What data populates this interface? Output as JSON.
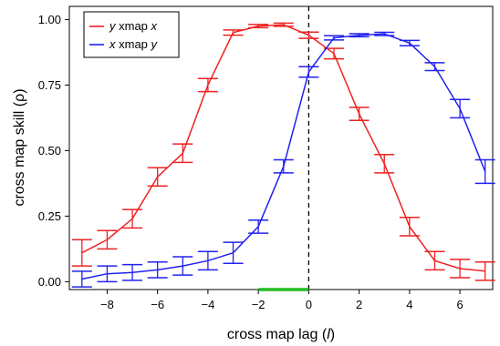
{
  "chart_data": {
    "type": "line",
    "xlabel": "cross map lag (l)",
    "xlabel_parts": {
      "prefix": "cross map lag (",
      "var": "l",
      "suffix": ")"
    },
    "ylabel": "cross map skill (ρ)",
    "xlim": [
      -9.5,
      7.3
    ],
    "ylim": [
      -0.03,
      1.05
    ],
    "xticks": [
      -8,
      -6,
      -4,
      -2,
      0,
      2,
      4,
      6
    ],
    "xtick_labels": [
      "−8",
      "−6",
      "−4",
      "−2",
      "0",
      "2",
      "4",
      "6"
    ],
    "yticks": [
      0.0,
      0.25,
      0.5,
      0.75,
      1.0
    ],
    "ytick_labels": [
      "0.00",
      "0.25",
      "0.50",
      "0.75",
      "1.00"
    ],
    "grid": false,
    "legend_position": "top-left",
    "vline": {
      "x": 0,
      "style": "dashed",
      "color": "#000000"
    },
    "highlight_segment": {
      "x": [
        -2,
        0
      ],
      "color": "#22bb22"
    },
    "x": [
      -9,
      -8,
      -7,
      -6,
      -5,
      -4,
      -3,
      -2,
      -1,
      0,
      1,
      2,
      3,
      4,
      5,
      6,
      7
    ],
    "series": [
      {
        "name": "y xmap x",
        "legend": {
          "a": "y",
          "mid": " xmap ",
          "b": "x"
        },
        "color": "#ee2222",
        "values": [
          0.11,
          0.16,
          0.24,
          0.4,
          0.49,
          0.75,
          0.95,
          0.975,
          0.98,
          0.94,
          0.87,
          0.64,
          0.45,
          0.21,
          0.08,
          0.05,
          0.04
        ],
        "err": [
          0.05,
          0.035,
          0.035,
          0.035,
          0.035,
          0.025,
          0.01,
          0.006,
          0.006,
          0.012,
          0.02,
          0.025,
          0.035,
          0.035,
          0.035,
          0.035,
          0.035
        ]
      },
      {
        "name": "x xmap y",
        "legend": {
          "a": "x",
          "mid": " xmap ",
          "b": "y"
        },
        "color": "#2222ee",
        "values": [
          0.01,
          0.03,
          0.035,
          0.045,
          0.06,
          0.08,
          0.11,
          0.21,
          0.44,
          0.8,
          0.93,
          0.94,
          0.945,
          0.91,
          0.82,
          0.66,
          0.42
        ],
        "err": [
          0.03,
          0.03,
          0.03,
          0.03,
          0.035,
          0.035,
          0.04,
          0.025,
          0.025,
          0.02,
          0.008,
          0.006,
          0.006,
          0.01,
          0.015,
          0.035,
          0.045
        ]
      }
    ]
  }
}
